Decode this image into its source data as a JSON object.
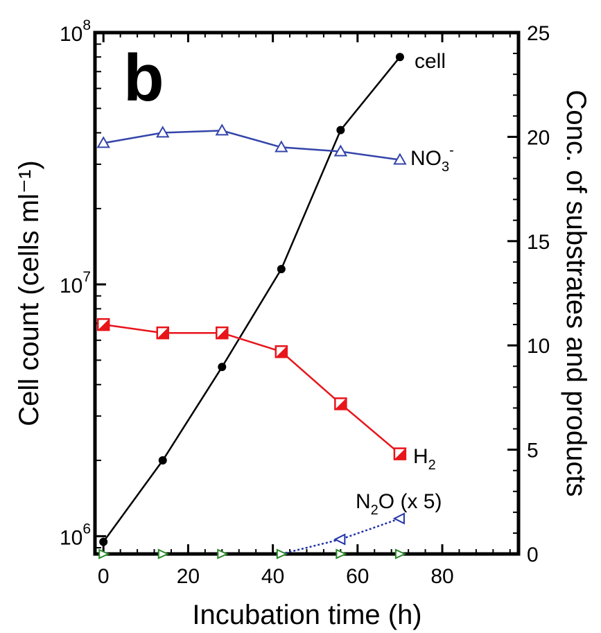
{
  "chart_data": {
    "type": "line",
    "panel_label": "b",
    "xlabel": "Incubation time (h)",
    "ylabel_left": "Cell count (cells ml⁻¹)",
    "ylabel_right": "Conc. of substrates and products",
    "xlim": [
      -2,
      98
    ],
    "x_ticks": [
      "0",
      "20",
      "40",
      "60",
      "80"
    ],
    "y_left_scale": "log",
    "y_left_lim": [
      850000,
      100000000
    ],
    "y_left_ticks": [
      {
        "base": "10",
        "exp": "6",
        "value": 1000000
      },
      {
        "base": "10",
        "exp": "7",
        "value": 10000000
      },
      {
        "base": "10",
        "exp": "8",
        "value": 100000000
      }
    ],
    "y_right_lim": [
      0,
      25
    ],
    "y_right_ticks": [
      "0",
      "5",
      "10",
      "15",
      "20",
      "25"
    ],
    "series": [
      {
        "name": "cell",
        "axis": "left",
        "color": "#000000",
        "marker": "filled-circle",
        "line": "solid",
        "x": [
          0,
          14,
          28,
          42,
          56,
          70
        ],
        "y": [
          950000,
          2000000,
          4700000,
          11500000,
          41000000,
          80000000
        ]
      },
      {
        "name": "NO3-",
        "label_main": "NO",
        "label_sub": "3",
        "label_sup": "-",
        "axis": "right",
        "color": "#3344aa",
        "marker": "open-triangle-up",
        "line": "solid",
        "x": [
          0,
          14,
          28,
          42,
          56,
          70
        ],
        "y": [
          19.7,
          20.2,
          20.3,
          19.5,
          19.3,
          18.9
        ]
      },
      {
        "name": "H2",
        "label_main": "H",
        "label_sub": "2",
        "axis": "right",
        "color": "#e8141b",
        "marker": "half-filled-square",
        "line": "solid",
        "x": [
          0,
          14,
          28,
          42,
          56,
          70
        ],
        "y": [
          11.0,
          10.6,
          10.6,
          9.7,
          7.2,
          4.8
        ]
      },
      {
        "name": "N2O (x 5)",
        "label_main": "N",
        "label_sub": "2",
        "label_rest": "O (x 5)",
        "axis": "right",
        "color": "#2233aa",
        "marker": "open-triangle-left",
        "line": "dotted",
        "x": [
          0,
          14,
          28,
          42,
          56,
          70
        ],
        "y": [
          0,
          0,
          0,
          0,
          0.7,
          1.7
        ]
      }
    ],
    "baseline_markers": {
      "color": "#2a8a2a",
      "x": [
        0,
        14,
        28,
        42,
        56,
        70
      ],
      "y": 0
    }
  }
}
